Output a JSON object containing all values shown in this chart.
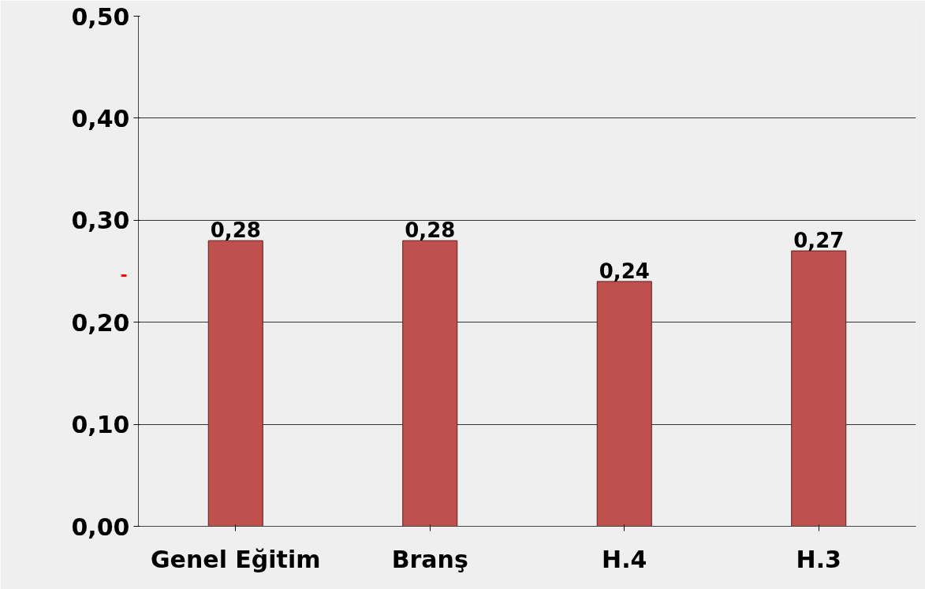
{
  "chart_data": {
    "type": "bar",
    "categories": [
      "Genel Eğitim",
      "Branş",
      "H.4",
      "H.3"
    ],
    "values": [
      0.28,
      0.28,
      0.24,
      0.27
    ],
    "color": "#c0504d",
    "value_labels": [
      "0,28",
      "0,28",
      "0,24",
      "0,27"
    ],
    "ylim": [
      0,
      0.5
    ],
    "yticks": [
      {
        "value": 0,
        "label": "0,00"
      },
      {
        "value": 0.1,
        "label": "0,10"
      },
      {
        "value": 0.2,
        "label": "0,20"
      },
      {
        "value": 0.3,
        "label": "0,30"
      },
      {
        "value": 0.4,
        "label": "0,40"
      },
      {
        "value": 0.5,
        "label": "0,50"
      }
    ],
    "grid": "y"
  }
}
